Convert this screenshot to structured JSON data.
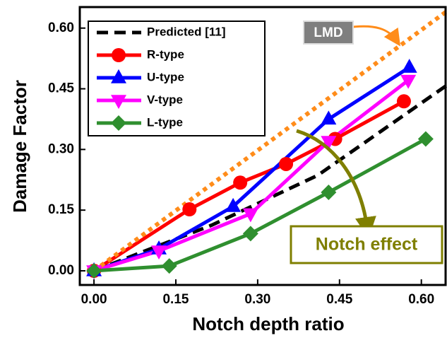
{
  "chart_data": {
    "type": "line",
    "x_label": "Notch depth ratio",
    "y_label": "Damage Factor",
    "xlim": [
      -0.026,
      0.647
    ],
    "ylim": [
      -0.035,
      0.652
    ],
    "xticks": [
      {
        "value": 0,
        "label": "0.00"
      },
      {
        "value": 0.15,
        "label": "0.15"
      },
      {
        "value": 0.3,
        "label": "0.30"
      },
      {
        "value": 0.45,
        "label": "0.45"
      },
      {
        "value": 0.6,
        "label": "0.60"
      }
    ],
    "yticks": [
      {
        "value": 0,
        "label": "0.00"
      },
      {
        "value": 0.15,
        "label": "0.15"
      },
      {
        "value": 0.3,
        "label": "0.30"
      },
      {
        "value": 0.45,
        "label": "0.45"
      },
      {
        "value": 0.6,
        "label": "0.60"
      }
    ],
    "legend": "upper left",
    "series": [
      {
        "name": "Predicted [11]",
        "color": "#000000",
        "style": "dashed",
        "x": [
          0,
          0.216,
          0.41,
          0.527,
          0.647
        ],
        "values": [
          0,
          0.113,
          0.236,
          0.346,
          0.459
        ]
      },
      {
        "name": "R-type",
        "color": "#ff0000",
        "marker": "circle",
        "x": [
          0,
          0.175,
          0.268,
          0.352,
          0.442,
          0.568
        ],
        "values": [
          0,
          0.152,
          0.218,
          0.264,
          0.326,
          0.419
        ]
      },
      {
        "name": "U-type",
        "color": "#0000ff",
        "marker": "triangle-up",
        "x": [
          0,
          0.119,
          0.255,
          0.43,
          0.578
        ],
        "values": [
          0,
          0.054,
          0.159,
          0.375,
          0.503
        ]
      },
      {
        "name": "V-type",
        "color": "#ff00ff",
        "marker": "triangle-down",
        "x": [
          0,
          0.119,
          0.287,
          0.43,
          0.576
        ],
        "values": [
          0,
          0.049,
          0.141,
          0.32,
          0.471
        ]
      },
      {
        "name": "L-type",
        "color": "#2f8f2f",
        "marker": "diamond",
        "x": [
          0,
          0.138,
          0.287,
          0.43,
          0.608
        ],
        "values": [
          0,
          0.012,
          0.092,
          0.194,
          0.326
        ]
      },
      {
        "color": "#ff8c1a",
        "style": "dotted",
        "x": [
          0,
          0.647
        ],
        "values": [
          0,
          0.642
        ]
      }
    ],
    "annotations": [
      {
        "text": "LMD"
      },
      {
        "text": "Notch effect"
      }
    ]
  }
}
